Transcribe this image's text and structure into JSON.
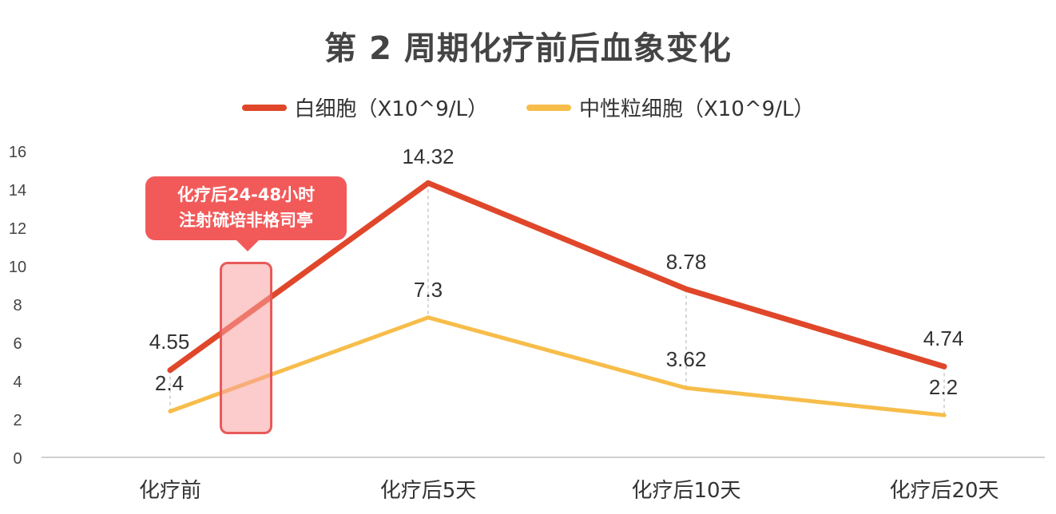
{
  "chart_data": {
    "type": "line",
    "title": "第 2 周期化疗前后血象变化",
    "categories": [
      "化疗前",
      "化疗后5天",
      "化疗后10天",
      "化疗后20天"
    ],
    "ylim": [
      0,
      16
    ],
    "yticks": [
      0,
      2,
      4,
      6,
      8,
      10,
      12,
      14,
      16
    ],
    "grid": false,
    "legend_position": "top",
    "series": [
      {
        "name": "白细胞（X10^9/L）",
        "values": [
          4.55,
          14.32,
          8.78,
          4.74
        ],
        "labels": [
          "4.55",
          "14.32",
          "8.78",
          "4.74"
        ],
        "color": "#e0472a"
      },
      {
        "name": "中性粒细胞（X10^9/L）",
        "values": [
          2.4,
          7.3,
          3.62,
          2.2
        ],
        "labels": [
          "2.4",
          "7.3",
          "3.62",
          "2.2"
        ],
        "color": "#f7bd4a"
      }
    ],
    "annotation": {
      "line1": "化疗后24-48小时",
      "line2": "注射硫培非格司亭",
      "color": "#f25a5a"
    }
  }
}
